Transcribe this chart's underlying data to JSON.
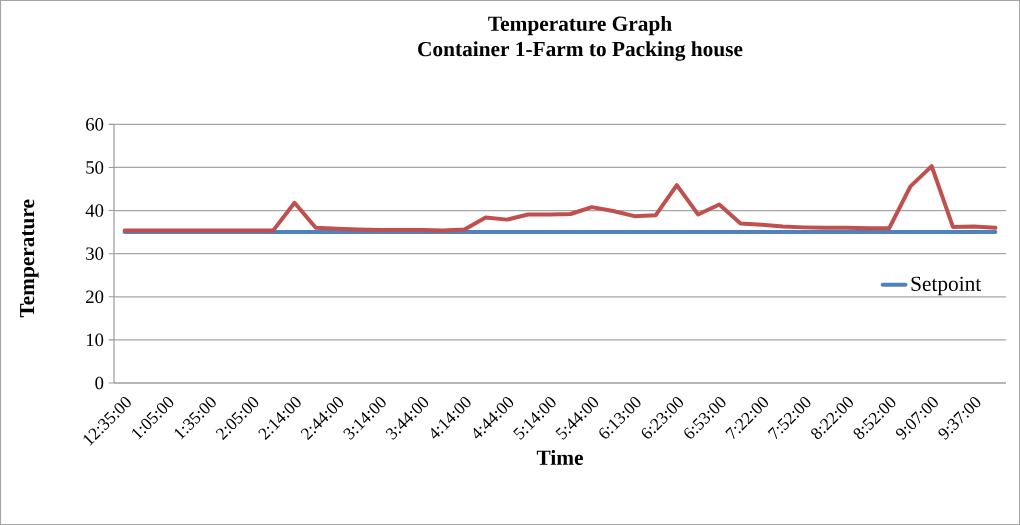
{
  "chart_data": {
    "type": "line",
    "title": "Temperature Graph",
    "subtitle": "Container 1-Farm to Packing house",
    "xlabel": "Time",
    "ylabel": "Temperature",
    "categories": [
      "12:35:00",
      null,
      "1:05:00",
      null,
      "1:35:00",
      null,
      "2:05:00",
      null,
      "2:14:00",
      null,
      "2:44:00",
      null,
      "3:14:00",
      null,
      "3:44:00",
      null,
      "4:14:00",
      null,
      "4:44:00",
      null,
      "5:14:00",
      null,
      "5:44:00",
      null,
      "6:13:00",
      null,
      "6:23:00",
      null,
      "6:53:00",
      null,
      "7:22:00",
      null,
      "7:52:00",
      null,
      "8:22:00",
      null,
      "8:52:00",
      null,
      "9:07:00",
      null,
      "9:37:00",
      null
    ],
    "series": [
      {
        "color": "#c0504d",
        "values": [
          35.4,
          35.4,
          35.4,
          35.4,
          35.4,
          35.4,
          35.4,
          35.4,
          41.8,
          36.0,
          35.8,
          35.6,
          35.5,
          35.5,
          35.5,
          35.4,
          35.6,
          38.4,
          37.9,
          39.1,
          39.1,
          39.2,
          40.8,
          39.9,
          38.7,
          38.9,
          45.9,
          39.1,
          41.4,
          37.0,
          36.7,
          36.3,
          36.1,
          36.0,
          36.0,
          35.9,
          35.9,
          45.6,
          50.3,
          36.2,
          36.3,
          36.0
        ]
      },
      {
        "name": "Setpoint",
        "color": "#4f81bd",
        "values": [
          35,
          35,
          35,
          35,
          35,
          35,
          35,
          35,
          35,
          35,
          35,
          35,
          35,
          35,
          35,
          35,
          35,
          35,
          35,
          35,
          35,
          35,
          35,
          35,
          35,
          35,
          35,
          35,
          35,
          35,
          35,
          35,
          35,
          35,
          35,
          35,
          35,
          35,
          35,
          35,
          35,
          35
        ]
      }
    ],
    "ylim": [
      0,
      60
    ],
    "yticks": [
      0,
      10,
      20,
      30,
      40,
      50,
      60
    ],
    "grid": "y",
    "legend": "right",
    "marker": "none",
    "line_style": "solid"
  }
}
